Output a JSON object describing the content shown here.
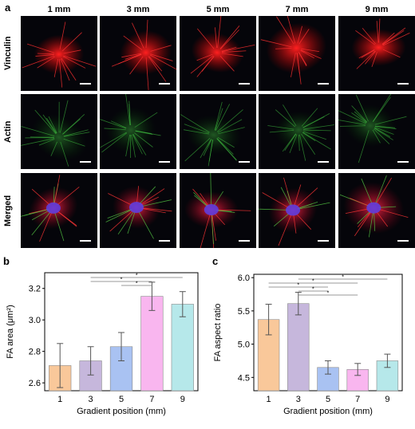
{
  "panel_a": {
    "label": "a",
    "columns": [
      "1 mm",
      "3 mm",
      "5 mm",
      "7 mm",
      "9 mm"
    ],
    "rows": [
      "Vinculin",
      "Actin",
      "Merged"
    ]
  },
  "chart_data": [
    {
      "panel": "b",
      "type": "bar",
      "categories": [
        "1",
        "3",
        "5",
        "7",
        "9"
      ],
      "values": [
        2.71,
        2.74,
        2.83,
        3.15,
        3.1
      ],
      "errors": [
        0.14,
        0.09,
        0.09,
        0.09,
        0.08
      ],
      "colors": [
        "#f9c89a",
        "#c6b7dc",
        "#a9c2f2",
        "#f9b6ef",
        "#b6e8ea"
      ],
      "xlabel": "Gradient position (mm)",
      "ylabel": "FA area (μm²)",
      "ylim": [
        2.55,
        3.3
      ],
      "yticks": [
        "2.6",
        "2.8",
        "3.0",
        "3.2"
      ],
      "significance": [
        {
          "from": "3",
          "to": "9",
          "label": "*"
        },
        {
          "from": "3",
          "to": "7",
          "label": "*"
        },
        {
          "from": "5",
          "to": "7",
          "label": "*"
        }
      ]
    },
    {
      "panel": "c",
      "type": "bar",
      "categories": [
        "1",
        "3",
        "5",
        "7",
        "9"
      ],
      "values": [
        5.37,
        5.61,
        4.65,
        4.62,
        4.75
      ],
      "errors": [
        0.23,
        0.17,
        0.1,
        0.09,
        0.1
      ],
      "colors": [
        "#f9c89a",
        "#c6b7dc",
        "#a9c2f2",
        "#f9b6ef",
        "#b6e8ea"
      ],
      "xlabel": "Gradient position (mm)",
      "ylabel": "FA aspect ratio",
      "ylim": [
        4.3,
        6.05
      ],
      "yticks": [
        "4.5",
        "5.0",
        "5.5",
        "6.0"
      ],
      "significance": [
        {
          "from": "3",
          "to": "9",
          "label": "*"
        },
        {
          "from": "1",
          "to": "7",
          "label": "*"
        },
        {
          "from": "1",
          "to": "5",
          "label": "*"
        },
        {
          "from": "3",
          "to": "5",
          "label": "*"
        },
        {
          "from": "3",
          "to": "7",
          "label": "*"
        }
      ]
    }
  ]
}
